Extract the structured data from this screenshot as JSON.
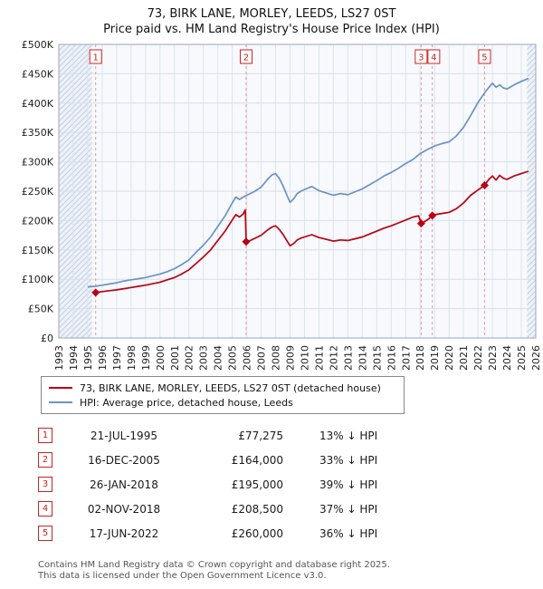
{
  "chart_data": {
    "type": "line",
    "title": "73, BIRK LANE, MORLEY, LEEDS, LS27 0ST",
    "subtitle": "Price paid vs. HM Land Registry's House Price Index (HPI)",
    "x_range": [
      1993,
      2026
    ],
    "y_range": [
      0,
      500000
    ],
    "y_tick_step": 50000,
    "y_tick_labels": [
      "£0",
      "£50K",
      "£100K",
      "£150K",
      "£200K",
      "£250K",
      "£300K",
      "£350K",
      "£400K",
      "£450K",
      "£500K"
    ],
    "grid": true,
    "legend_position": "below",
    "hatch_regions": [
      [
        1993,
        1995.3
      ],
      [
        2025.4,
        2026
      ]
    ],
    "legend": [
      {
        "label": "73, BIRK LANE, MORLEY, LEEDS, LS27 0ST (detached house)",
        "color": "#bb0011"
      },
      {
        "label": "HPI: Average price, detached house, Leeds",
        "color": "#6a93c3"
      }
    ],
    "series": [
      {
        "name": "73, BIRK LANE, MORLEY, LEEDS, LS27 0ST (detached house)",
        "color": "#bb0011",
        "points": [
          [
            1995.55,
            77275
          ],
          [
            1996,
            79000
          ],
          [
            1996.5,
            80500
          ],
          [
            1997,
            82000
          ],
          [
            1997.5,
            84000
          ],
          [
            1998,
            86000
          ],
          [
            1998.5,
            88000
          ],
          [
            1999,
            90000
          ],
          [
            1999.5,
            92500
          ],
          [
            2000,
            95000
          ],
          [
            2000.5,
            99000
          ],
          [
            2001,
            103000
          ],
          [
            2001.5,
            109000
          ],
          [
            2002,
            116000
          ],
          [
            2002.5,
            127000
          ],
          [
            2003,
            138000
          ],
          [
            2003.5,
            150000
          ],
          [
            2004,
            166000
          ],
          [
            2004.5,
            182000
          ],
          [
            2005,
            201000
          ],
          [
            2005.25,
            210000
          ],
          [
            2005.5,
            206000
          ],
          [
            2005.75,
            211000
          ],
          [
            2005.9,
            218000
          ],
          [
            2005.96,
            164000
          ],
          [
            2006.25,
            166000
          ],
          [
            2006.5,
            169000
          ],
          [
            2007,
            175000
          ],
          [
            2007.5,
            185000
          ],
          [
            2007.75,
            189000
          ],
          [
            2008,
            191000
          ],
          [
            2008.25,
            185000
          ],
          [
            2008.5,
            177000
          ],
          [
            2008.75,
            167000
          ],
          [
            2009,
            157000
          ],
          [
            2009.25,
            161000
          ],
          [
            2009.5,
            167000
          ],
          [
            2009.75,
            170000
          ],
          [
            2010,
            172000
          ],
          [
            2010.5,
            176000
          ],
          [
            2011,
            171000
          ],
          [
            2011.5,
            168000
          ],
          [
            2012,
            165000
          ],
          [
            2012.5,
            167000
          ],
          [
            2013,
            166000
          ],
          [
            2013.5,
            169000
          ],
          [
            2014,
            172000
          ],
          [
            2014.5,
            177000
          ],
          [
            2015,
            182000
          ],
          [
            2015.5,
            187000
          ],
          [
            2016,
            191000
          ],
          [
            2016.5,
            196000
          ],
          [
            2017,
            201000
          ],
          [
            2017.5,
            206000
          ],
          [
            2017.9,
            208000
          ],
          [
            2018.07,
            195000
          ],
          [
            2018.3,
            198000
          ],
          [
            2018.6,
            203000
          ],
          [
            2018.84,
            208500
          ],
          [
            2019,
            210000
          ],
          [
            2019.5,
            212000
          ],
          [
            2020,
            214000
          ],
          [
            2020.5,
            220000
          ],
          [
            2021,
            230000
          ],
          [
            2021.5,
            243000
          ],
          [
            2022,
            252000
          ],
          [
            2022.46,
            260000
          ],
          [
            2022.75,
            270000
          ],
          [
            2023,
            276000
          ],
          [
            2023.25,
            269000
          ],
          [
            2023.5,
            277000
          ],
          [
            2023.75,
            272000
          ],
          [
            2024,
            270000
          ],
          [
            2024.5,
            276000
          ],
          [
            2025,
            280000
          ],
          [
            2025.5,
            284000
          ]
        ]
      },
      {
        "name": "HPI: Average price, detached house, Leeds",
        "color": "#6a93c3",
        "points": [
          [
            1995,
            87000
          ],
          [
            1995.5,
            88000
          ],
          [
            1996,
            90000
          ],
          [
            1996.5,
            92000
          ],
          [
            1997,
            94000
          ],
          [
            1997.5,
            97000
          ],
          [
            1998,
            99000
          ],
          [
            1998.5,
            101000
          ],
          [
            1999,
            103000
          ],
          [
            1999.5,
            106000
          ],
          [
            2000,
            109000
          ],
          [
            2000.5,
            113000
          ],
          [
            2001,
            118000
          ],
          [
            2001.5,
            125000
          ],
          [
            2002,
            133000
          ],
          [
            2002.5,
            146000
          ],
          [
            2003,
            158000
          ],
          [
            2003.5,
            172000
          ],
          [
            2004,
            190000
          ],
          [
            2004.5,
            208000
          ],
          [
            2005,
            230000
          ],
          [
            2005.25,
            240000
          ],
          [
            2005.5,
            236000
          ],
          [
            2005.75,
            240000
          ],
          [
            2006,
            243000
          ],
          [
            2006.5,
            249000
          ],
          [
            2007,
            257000
          ],
          [
            2007.5,
            272000
          ],
          [
            2007.75,
            278000
          ],
          [
            2008,
            280000
          ],
          [
            2008.25,
            272000
          ],
          [
            2008.5,
            260000
          ],
          [
            2008.75,
            245000
          ],
          [
            2009,
            231000
          ],
          [
            2009.25,
            237000
          ],
          [
            2009.5,
            246000
          ],
          [
            2009.75,
            250000
          ],
          [
            2010,
            253000
          ],
          [
            2010.5,
            258000
          ],
          [
            2011,
            251000
          ],
          [
            2011.5,
            247000
          ],
          [
            2012,
            243000
          ],
          [
            2012.5,
            246000
          ],
          [
            2013,
            244000
          ],
          [
            2013.5,
            249000
          ],
          [
            2014,
            254000
          ],
          [
            2014.5,
            261000
          ],
          [
            2015,
            268000
          ],
          [
            2015.5,
            276000
          ],
          [
            2016,
            282000
          ],
          [
            2016.5,
            289000
          ],
          [
            2017,
            297000
          ],
          [
            2017.5,
            304000
          ],
          [
            2018,
            314000
          ],
          [
            2018.5,
            321000
          ],
          [
            2019,
            327000
          ],
          [
            2019.5,
            331000
          ],
          [
            2020,
            334000
          ],
          [
            2020.5,
            344000
          ],
          [
            2021,
            359000
          ],
          [
            2021.5,
            379000
          ],
          [
            2022,
            401000
          ],
          [
            2022.5,
            419000
          ],
          [
            2023,
            434000
          ],
          [
            2023.25,
            427000
          ],
          [
            2023.5,
            431000
          ],
          [
            2023.75,
            426000
          ],
          [
            2024,
            424000
          ],
          [
            2024.5,
            431000
          ],
          [
            2025,
            437000
          ],
          [
            2025.5,
            442000
          ]
        ]
      }
    ],
    "sale_markers": [
      {
        "n": "1",
        "x": 1995.55,
        "y": 77275
      },
      {
        "n": "2",
        "x": 2005.96,
        "y": 164000
      },
      {
        "n": "3",
        "x": 2018.07,
        "y": 195000
      },
      {
        "n": "4",
        "x": 2018.84,
        "y": 208500
      },
      {
        "n": "5",
        "x": 2022.46,
        "y": 260000
      }
    ]
  },
  "sales_table": {
    "rows": [
      {
        "n": "1",
        "date": "21-JUL-1995",
        "price": "£77,275",
        "hpi": "13% ↓ HPI"
      },
      {
        "n": "2",
        "date": "16-DEC-2005",
        "price": "£164,000",
        "hpi": "33% ↓ HPI"
      },
      {
        "n": "3",
        "date": "26-JAN-2018",
        "price": "£195,000",
        "hpi": "39% ↓ HPI"
      },
      {
        "n": "4",
        "date": "02-NOV-2018",
        "price": "£208,500",
        "hpi": "37% ↓ HPI"
      },
      {
        "n": "5",
        "date": "17-JUN-2022",
        "price": "£260,000",
        "hpi": "36% ↓ HPI"
      }
    ]
  },
  "footer": {
    "line1": "Contains HM Land Registry data © Crown copyright and database right 2025.",
    "line2": "This data is licensed under the Open Government Licence v3.0."
  },
  "colors": {
    "property_line": "#bb0011",
    "hpi_line": "#6a93c3",
    "sale_dash": "#e79a9a",
    "badge_red": "#cc2222",
    "plot_bg": "#f7f9fc",
    "grid": "#dde4ee"
  }
}
